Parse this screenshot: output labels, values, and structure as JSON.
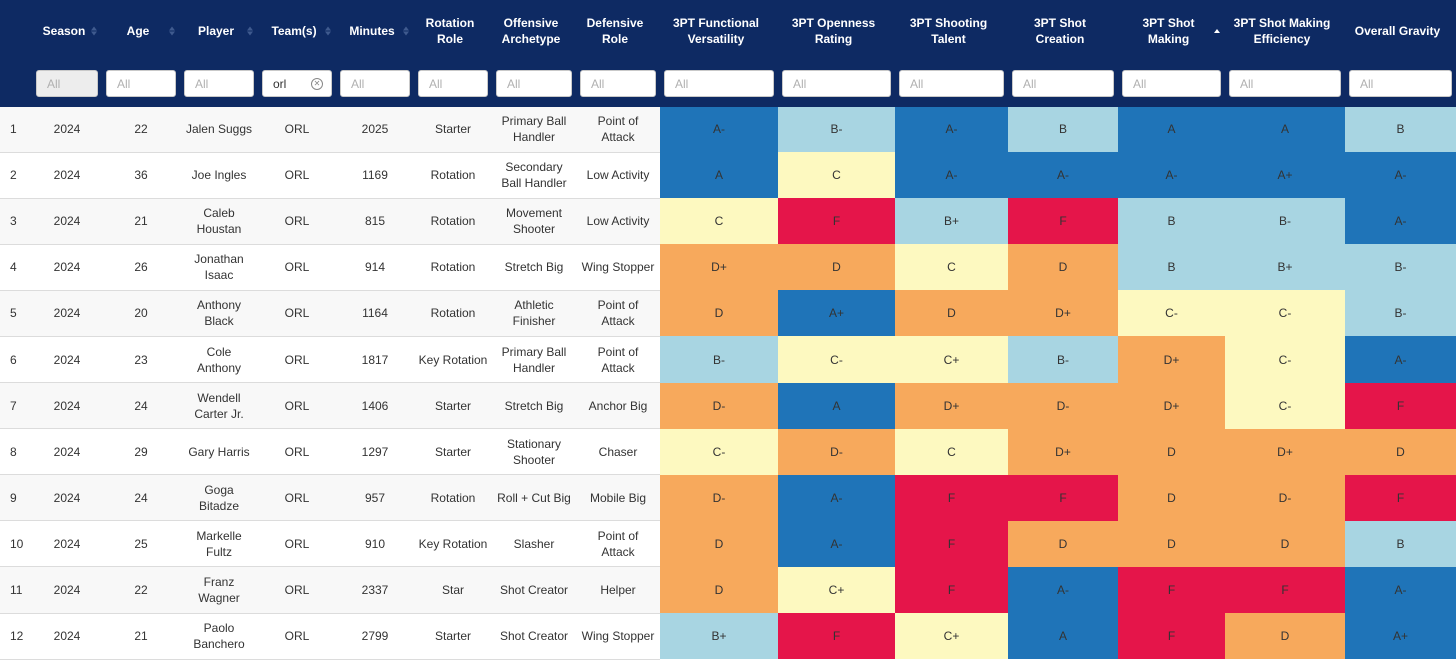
{
  "columns": [
    {
      "label": "",
      "sortable": false
    },
    {
      "label": "Season",
      "sortable": true
    },
    {
      "label": "Age",
      "sortable": true
    },
    {
      "label": "Player",
      "sortable": true
    },
    {
      "label": "Team(s)",
      "sortable": true
    },
    {
      "label": "Minutes",
      "sortable": true
    },
    {
      "label": "Rotation Role",
      "sortable": false
    },
    {
      "label": "Offensive Archetype",
      "sortable": false
    },
    {
      "label": "Defensive Role",
      "sortable": false
    },
    {
      "label": "3PT Functional Versatility",
      "sortable": false
    },
    {
      "label": "3PT Openness Rating",
      "sortable": false
    },
    {
      "label": "3PT Shooting Talent",
      "sortable": false
    },
    {
      "label": "3PT Shot Creation",
      "sortable": false
    },
    {
      "label": "3PT Shot Making",
      "sortable": true,
      "sorted": "asc"
    },
    {
      "label": "3PT Shot Making Efficiency",
      "sortable": false
    },
    {
      "label": "Overall Gravity",
      "sortable": false
    }
  ],
  "filters": [
    {
      "value": "",
      "placeholder": "All",
      "disabled": true
    },
    {
      "value": "",
      "placeholder": "All"
    },
    {
      "value": "",
      "placeholder": "All"
    },
    {
      "value": "orl",
      "placeholder": "All",
      "clearable": true
    },
    {
      "value": "",
      "placeholder": "All"
    },
    {
      "value": "",
      "placeholder": "All"
    },
    {
      "value": "",
      "placeholder": "All"
    },
    {
      "value": "",
      "placeholder": "All"
    },
    {
      "value": "",
      "placeholder": "All"
    },
    {
      "value": "",
      "placeholder": "All"
    },
    {
      "value": "",
      "placeholder": "All"
    },
    {
      "value": "",
      "placeholder": "All"
    },
    {
      "value": "",
      "placeholder": "All"
    },
    {
      "value": "",
      "placeholder": "All"
    },
    {
      "value": "",
      "placeholder": "All"
    }
  ],
  "grade_colors": {
    "A+": "#1f74b8",
    "A": "#1f74b8",
    "A-": "#1f74b8",
    "B+": "#a8d5e2",
    "B": "#a8d5e2",
    "B-": "#a8d5e2",
    "C+": "#fdf9c0",
    "C": "#fdf9c0",
    "C-": "#fdf9c0",
    "D+": "#f7a95c",
    "D": "#f7a95c",
    "D-": "#f7a95c",
    "F": "#e5154a"
  },
  "rows": [
    {
      "rank": "1",
      "season": "2024",
      "age": "22",
      "player": "Jalen Suggs",
      "team": "ORL",
      "minutes": "2025",
      "rotation_role": "Starter",
      "offensive_archetype": "Primary Ball Handler",
      "defensive_role": "Point of Attack",
      "grades": [
        "A-",
        "B-",
        "A-",
        "B",
        "A",
        "A",
        "B"
      ]
    },
    {
      "rank": "2",
      "season": "2024",
      "age": "36",
      "player": "Joe Ingles",
      "team": "ORL",
      "minutes": "1169",
      "rotation_role": "Rotation",
      "offensive_archetype": "Secondary Ball Handler",
      "defensive_role": "Low Activity",
      "grades": [
        "A",
        "C",
        "A-",
        "A-",
        "A-",
        "A+",
        "A-"
      ]
    },
    {
      "rank": "3",
      "season": "2024",
      "age": "21",
      "player": "Caleb Houstan",
      "team": "ORL",
      "minutes": "815",
      "rotation_role": "Rotation",
      "offensive_archetype": "Movement Shooter",
      "defensive_role": "Low Activity",
      "grades": [
        "C",
        "F",
        "B+",
        "F",
        "B",
        "B-",
        "A-"
      ]
    },
    {
      "rank": "4",
      "season": "2024",
      "age": "26",
      "player": "Jonathan Isaac",
      "team": "ORL",
      "minutes": "914",
      "rotation_role": "Rotation",
      "offensive_archetype": "Stretch Big",
      "defensive_role": "Wing Stopper",
      "grades": [
        "D+",
        "D",
        "C",
        "D",
        "B",
        "B+",
        "B-"
      ]
    },
    {
      "rank": "5",
      "season": "2024",
      "age": "20",
      "player": "Anthony Black",
      "team": "ORL",
      "minutes": "1164",
      "rotation_role": "Rotation",
      "offensive_archetype": "Athletic Finisher",
      "defensive_role": "Point of Attack",
      "grades": [
        "D",
        "A+",
        "D",
        "D+",
        "C-",
        "C-",
        "B-"
      ]
    },
    {
      "rank": "6",
      "season": "2024",
      "age": "23",
      "player": "Cole Anthony",
      "team": "ORL",
      "minutes": "1817",
      "rotation_role": "Key Rotation",
      "offensive_archetype": "Primary Ball Handler",
      "defensive_role": "Point of Attack",
      "grades": [
        "B-",
        "C-",
        "C+",
        "B-",
        "D+",
        "C-",
        "A-"
      ]
    },
    {
      "rank": "7",
      "season": "2024",
      "age": "24",
      "player": "Wendell Carter Jr.",
      "team": "ORL",
      "minutes": "1406",
      "rotation_role": "Starter",
      "offensive_archetype": "Stretch Big",
      "defensive_role": "Anchor Big",
      "grades": [
        "D-",
        "A",
        "D+",
        "D-",
        "D+",
        "C-",
        "F"
      ]
    },
    {
      "rank": "8",
      "season": "2024",
      "age": "29",
      "player": "Gary Harris",
      "team": "ORL",
      "minutes": "1297",
      "rotation_role": "Starter",
      "offensive_archetype": "Stationary Shooter",
      "defensive_role": "Chaser",
      "grades": [
        "C-",
        "D-",
        "C",
        "D+",
        "D",
        "D+",
        "D"
      ]
    },
    {
      "rank": "9",
      "season": "2024",
      "age": "24",
      "player": "Goga Bitadze",
      "team": "ORL",
      "minutes": "957",
      "rotation_role": "Rotation",
      "offensive_archetype": "Roll + Cut Big",
      "defensive_role": "Mobile Big",
      "grades": [
        "D-",
        "A-",
        "F",
        "F",
        "D",
        "D-",
        "F"
      ]
    },
    {
      "rank": "10",
      "season": "2024",
      "age": "25",
      "player": "Markelle Fultz",
      "team": "ORL",
      "minutes": "910",
      "rotation_role": "Key Rotation",
      "offensive_archetype": "Slasher",
      "defensive_role": "Point of Attack",
      "grades": [
        "D",
        "A-",
        "F",
        "D",
        "D",
        "D",
        "B"
      ]
    },
    {
      "rank": "11",
      "season": "2024",
      "age": "22",
      "player": "Franz Wagner",
      "team": "ORL",
      "minutes": "2337",
      "rotation_role": "Star",
      "offensive_archetype": "Shot Creator",
      "defensive_role": "Helper",
      "grades": [
        "D",
        "C+",
        "F",
        "A-",
        "F",
        "F",
        "A-"
      ]
    },
    {
      "rank": "12",
      "season": "2024",
      "age": "21",
      "player": "Paolo Banchero",
      "team": "ORL",
      "minutes": "2799",
      "rotation_role": "Starter",
      "offensive_archetype": "Shot Creator",
      "defensive_role": "Wing Stopper",
      "grades": [
        "B+",
        "F",
        "C+",
        "A",
        "F",
        "D",
        "A+"
      ]
    }
  ]
}
